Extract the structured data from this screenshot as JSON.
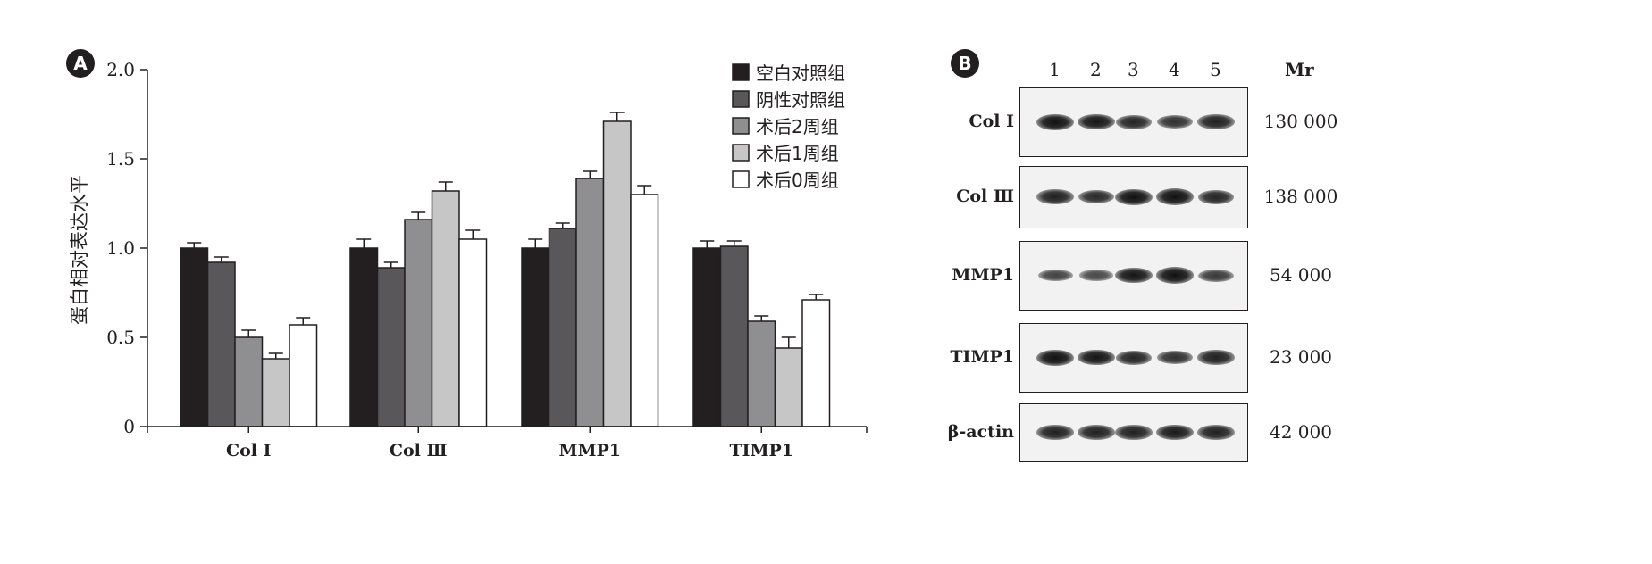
{
  "panel_a": {
    "badge": "A"
  },
  "panel_b": {
    "badge": "B"
  },
  "chart_data": {
    "type": "bar",
    "title": "",
    "xlabel": "",
    "ylabel": "蛋白相对表达水平",
    "ylim": [
      0,
      2.0
    ],
    "yticks": [
      "0",
      "0.5",
      "1.0",
      "1.5",
      "2.0"
    ],
    "ytick_values": [
      0,
      0.5,
      1.0,
      1.5,
      2.0
    ],
    "categories": [
      "Col Ⅰ",
      "Col Ⅲ",
      "MMP1",
      "TIMP1"
    ],
    "legend_position": "top-right",
    "grid": false,
    "series": [
      {
        "name": "空白对照组",
        "color": "#231f20",
        "values": [
          1.0,
          1.0,
          1.0,
          1.0
        ],
        "errors": [
          0.03,
          0.05,
          0.05,
          0.04
        ]
      },
      {
        "name": "阴性对照组",
        "color": "#59575a",
        "values": [
          0.92,
          0.89,
          1.11,
          1.01
        ],
        "errors": [
          0.03,
          0.03,
          0.03,
          0.03
        ]
      },
      {
        "name": "术后2周组",
        "color": "#8f8e90",
        "values": [
          0.5,
          1.16,
          1.39,
          0.59
        ],
        "errors": [
          0.04,
          0.04,
          0.04,
          0.03
        ]
      },
      {
        "name": "术后1周组",
        "color": "#c6c6c6",
        "values": [
          0.38,
          1.32,
          1.71,
          0.44
        ],
        "errors": [
          0.03,
          0.05,
          0.05,
          0.06
        ]
      },
      {
        "name": "术后0周组",
        "color": "#ffffff",
        "values": [
          0.57,
          1.05,
          1.3,
          0.71
        ],
        "errors": [
          0.04,
          0.05,
          0.05,
          0.03
        ]
      }
    ]
  },
  "blot": {
    "lanes": [
      "1",
      "2",
      "3",
      "4",
      "5"
    ],
    "mr_header": "Mr",
    "rows": [
      {
        "label": "Col Ⅰ",
        "mr": "130 000",
        "intensity": [
          1.0,
          0.95,
          0.8,
          0.7,
          0.85
        ]
      },
      {
        "label": "Col Ⅲ",
        "mr": "138 000",
        "intensity": [
          0.85,
          0.75,
          1.0,
          1.1,
          0.8
        ]
      },
      {
        "label": "MMP1",
        "mr": "54 000",
        "intensity": [
          0.5,
          0.45,
          0.95,
          1.05,
          0.6
        ]
      },
      {
        "label": "TIMP1",
        "mr": "23 000",
        "intensity": [
          1.0,
          0.95,
          0.8,
          0.7,
          0.85
        ]
      },
      {
        "label": "β-actin",
        "mr": "42 000",
        "intensity": [
          0.85,
          0.85,
          0.85,
          0.9,
          0.85
        ]
      }
    ]
  }
}
